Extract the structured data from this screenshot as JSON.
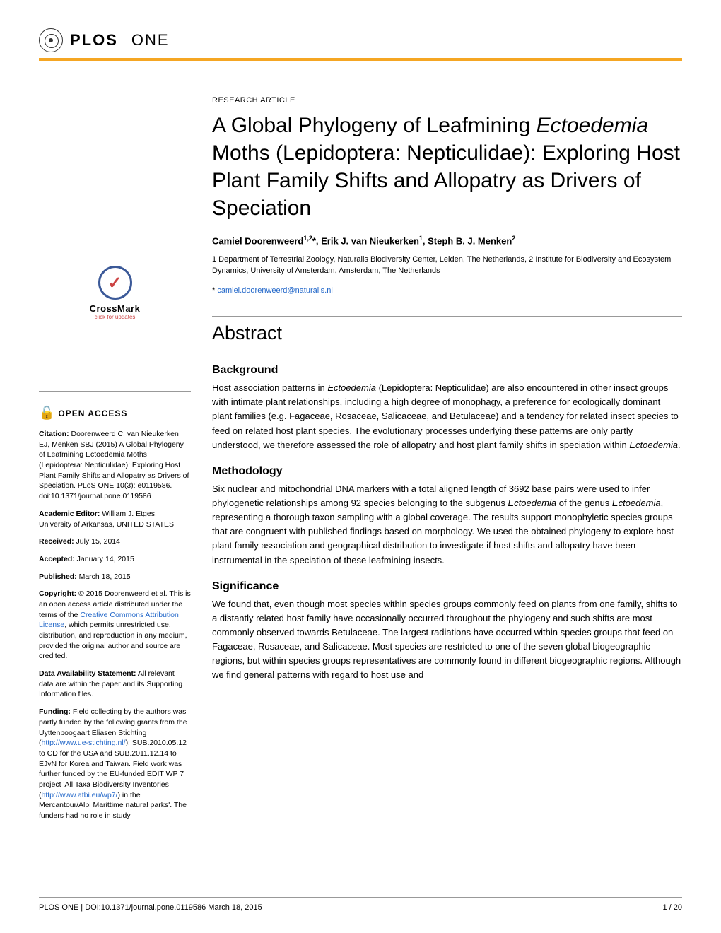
{
  "logo": {
    "brand": "PLOS",
    "journal": "ONE"
  },
  "colors": {
    "accent": "#f5a623",
    "link": "#2267c9",
    "text": "#000000",
    "background": "#ffffff"
  },
  "crossmark": {
    "label": "CrossMark",
    "sub": "click for updates"
  },
  "sidebar": {
    "open_access": "OPEN ACCESS",
    "citation_label": "Citation:",
    "citation_text": " Doorenweerd C, van Nieukerken EJ, Menken SBJ (2015) A Global Phylogeny of Leafmining Ectoedemia Moths (Lepidoptera: Nepticulidae): Exploring Host Plant Family Shifts and Allopatry as Drivers of Speciation. PLoS ONE 10(3): e0119586. doi:10.1371/journal.pone.0119586",
    "editor_label": "Academic Editor:",
    "editor_text": " William J. Etges, University of Arkansas, UNITED STATES",
    "received_label": "Received:",
    "received_text": " July 15, 2014",
    "accepted_label": "Accepted:",
    "accepted_text": " January 14, 2015",
    "published_label": "Published:",
    "published_text": " March 18, 2015",
    "copyright_label": "Copyright:",
    "copyright_text_pre": " © 2015 Doorenweerd et al. This is an open access article distributed under the terms of the ",
    "copyright_link": "Creative Commons Attribution License",
    "copyright_text_post": ", which permits unrestricted use, distribution, and reproduction in any medium, provided the original author and source are credited.",
    "data_label": "Data Availability Statement:",
    "data_text": " All relevant data are within the paper and its Supporting Information files.",
    "funding_label": "Funding:",
    "funding_text_pre": " Field collecting by the authors was partly funded by the following grants from the Uyttenboogaart Eliasen Stichting (",
    "funding_link1": "http://www.ue-stichting.nl/",
    "funding_text_mid1": "): SUB.2010.05.12 to CD for the USA and SUB.2011.12.14 to EJvN for Korea and Taiwan. Field work was further funded by the EU-funded EDIT WP 7 project 'All Taxa Biodiversity Inventories (",
    "funding_link2": "http://www.atbi.eu/wp7/",
    "funding_text_post": ") in the Mercantour/Alpi Marittime natural parks'. The funders had no role in study"
  },
  "article": {
    "type": "RESEARCH ARTICLE",
    "title_part1": "A Global Phylogeny of Leafmining ",
    "title_italic": "Ectoedemia",
    "title_part2": " Moths (Lepidoptera: Nepticulidae): Exploring Host Plant Family Shifts and Allopatry as Drivers of Speciation",
    "authors_html": "Camiel Doorenweerd",
    "author1_sup": "1,2",
    "author1_star": "*, ",
    "author2": "Erik J. van Nieukerken",
    "author2_sup": "1",
    "author2_sep": ", ",
    "author3": "Steph B. J. Menken",
    "author3_sup": "2",
    "affiliations": "1 Department of Terrestrial Zoology, Naturalis Biodiversity Center, Leiden, The Netherlands, 2 Institute for Biodiversity and Ecosystem Dynamics, University of Amsterdam, Amsterdam, The Netherlands",
    "correspondence_star": "* ",
    "correspondence_email": "camiel.doorenweerd@naturalis.nl",
    "abstract_heading": "Abstract",
    "background_heading": "Background",
    "background_pre": "Host association patterns in ",
    "background_italic1": "Ectoedemia",
    "background_mid": " (Lepidoptera: Nepticulidae) are also encountered in other insect groups with intimate plant relationships, including a high degree of monophagy, a preference for ecologically dominant plant families (e.g. Fagaceae, Rosaceae, Salicaceae, and Betulaceae) and a tendency for related insect species to feed on related host plant species. The evolutionary processes underlying these patterns are only partly understood, we therefore assessed the role of allopatry and host plant family shifts in speciation within ",
    "background_italic2": "Ectoedemia",
    "background_post": ".",
    "methodology_heading": "Methodology",
    "methodology_pre": "Six nuclear and mitochondrial DNA markers with a total aligned length of 3692 base pairs were used to infer phylogenetic relationships among 92 species belonging to the subgenus ",
    "methodology_italic1": "Ectoedemia",
    "methodology_mid1": " of the genus ",
    "methodology_italic2": "Ectoedemia",
    "methodology_post": ", representing a thorough taxon sampling with a global coverage. The results support monophyletic species groups that are congruent with published findings based on morphology. We used the obtained phylogeny to explore host plant family association and geographical distribution to investigate if host shifts and allopatry have been instrumental in the speciation of these leafmining insects.",
    "significance_heading": "Significance",
    "significance_text": "We found that, even though most species within species groups commonly feed on plants from one family, shifts to a distantly related host family have occasionally occurred throughout the phylogeny and such shifts are most commonly observed towards Betulaceae. The largest radiations have occurred within species groups that feed on Fagaceae, Rosaceae, and Salicaceae. Most species are restricted to one of the seven global biogeographic regions, but within species groups representatives are commonly found in different biogeographic regions. Although we find general patterns with regard to host use and"
  },
  "footer": {
    "left": "PLOS ONE | DOI:10.1371/journal.pone.0119586    March 18, 2015",
    "right": "1 / 20"
  }
}
